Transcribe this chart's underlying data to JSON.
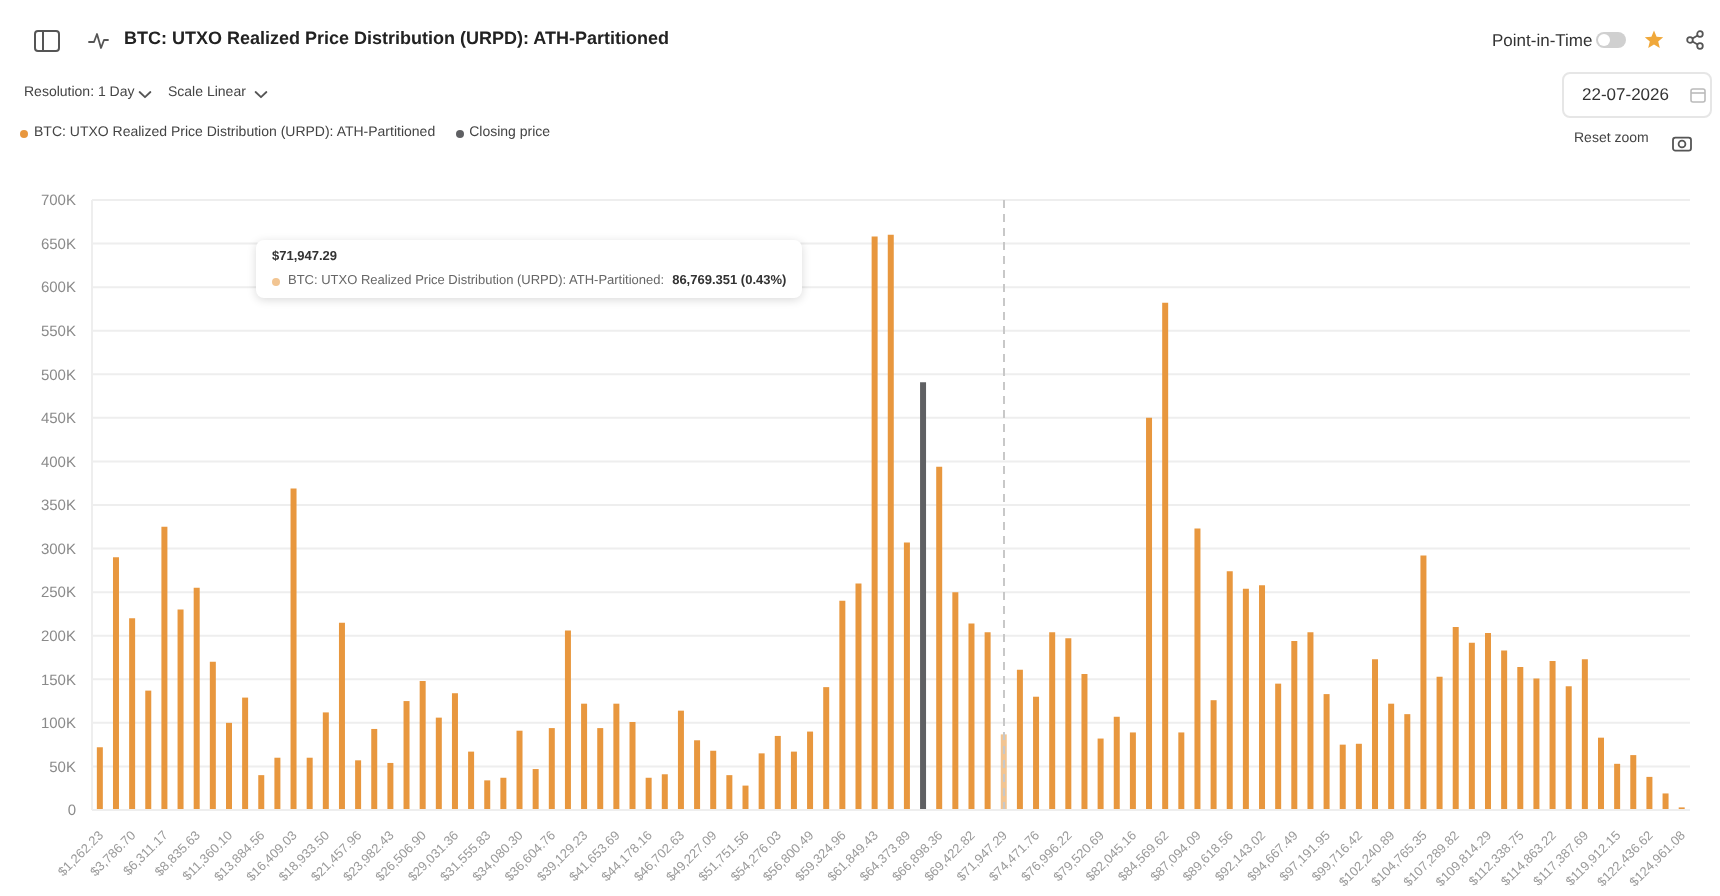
{
  "chart_data": {
    "type": "bar",
    "title": "BTC: UTXO Realized Price Distribution (URPD): ATH-Partitioned",
    "categories": [
      "$1,262.23",
      null,
      "$3,786.70",
      null,
      "$6,311.17",
      null,
      "$8,835.63",
      null,
      "$11,360.10",
      null,
      "$13,884.56",
      null,
      "$16,409.03",
      null,
      "$18,933.50",
      null,
      "$21,457.96",
      null,
      "$23,982.43",
      null,
      "$26,506.90",
      null,
      "$29,031.36",
      null,
      "$31,555.83",
      null,
      "$34,080.30",
      null,
      "$36,604.76",
      null,
      "$39,129.23",
      null,
      "$41,653.69",
      null,
      "$44,178.16",
      null,
      "$46,702.63",
      null,
      "$49,227.09",
      null,
      "$51,751.56",
      null,
      "$54,276.03",
      null,
      "$56,800.49",
      null,
      "$59,324.96",
      null,
      "$61,849.43",
      null,
      "$64,373.89",
      null,
      "$66,898.36",
      null,
      "$69,422.82",
      null,
      "$71,947.29",
      null,
      "$74,471.76",
      null,
      "$76,996.22",
      null,
      "$79,520.69",
      null,
      "$82,045.16",
      null,
      "$84,569.62",
      null,
      "$87,094.09",
      null,
      "$89,618.56",
      null,
      "$92,143.02",
      null,
      "$94,667.49",
      null,
      "$97,191.95",
      null,
      "$99,716.42",
      null,
      "$102,240.89",
      null,
      "$104,765.35",
      null,
      "$107,289.82",
      null,
      "$109,814.29",
      null,
      "$112,338.75",
      null,
      "$114,863.22",
      null,
      "$117,387.69",
      null,
      "$119,912.15",
      null,
      "$122,436.62",
      null,
      "$124,961.08"
    ],
    "series": [
      {
        "name": "BTC: UTXO Realized Price Distribution (URPD): ATH-Partitioned",
        "color": "#e8973e",
        "colors": [
          "#e8973e",
          "#e8973e",
          "#e8973e",
          "#e8973e",
          "#e8973e",
          "#e8973e",
          "#e8973e",
          "#e8973e",
          "#e8973e",
          "#e8973e",
          "#e8973e",
          "#e8973e",
          "#e8973e",
          "#e8973e",
          "#e8973e",
          "#e8973e",
          "#e8973e",
          "#e8973e",
          "#e8973e",
          "#e8973e",
          "#e8973e",
          "#e8973e",
          "#e8973e",
          "#e8973e",
          "#e8973e",
          "#e8973e",
          "#e8973e",
          "#e8973e",
          "#e8973e",
          "#e8973e",
          "#e8973e",
          "#e8973e",
          "#e8973e",
          "#e8973e",
          "#e8973e",
          "#e8973e",
          "#e8973e",
          "#e8973e",
          "#e8973e",
          "#e8973e",
          "#e8973e",
          "#e8973e",
          "#e8973e",
          "#e8973e",
          "#e8973e",
          "#e8973e",
          "#e8973e",
          "#e8973e",
          "#e8973e",
          "#e8973e",
          "#e8973e",
          "#e8973e",
          "#e8973e",
          "#e8973e",
          "#e8973e",
          "#e8973e",
          "#f2c592",
          "#e8973e",
          "#e8973e",
          "#e8973e",
          "#e8973e",
          "#e8973e",
          "#e8973e",
          "#e8973e",
          "#e8973e",
          "#e8973e",
          "#e8973e",
          "#e8973e",
          "#e8973e",
          "#e8973e",
          "#e8973e",
          "#e8973e",
          "#e8973e",
          "#e8973e",
          "#e8973e",
          "#e8973e",
          "#e8973e",
          "#e8973e",
          "#e8973e",
          "#e8973e",
          "#e8973e",
          "#e8973e",
          "#e8973e",
          "#e8973e",
          "#e8973e",
          "#e8973e",
          "#e8973e",
          "#e8973e",
          "#e8973e",
          "#e8973e",
          "#e8973e",
          "#e8973e",
          "#e8973e",
          "#e8973e",
          "#e8973e",
          "#e8973e",
          "#e8973e",
          "#e8973e",
          "#e8973e"
        ],
        "values": [
          72000,
          290000,
          220000,
          137000,
          325000,
          230000,
          255000,
          170000,
          100000,
          129000,
          40000,
          60000,
          369000,
          60000,
          112000,
          215000,
          57000,
          93000,
          54000,
          125000,
          148000,
          106000,
          134000,
          67000,
          34000,
          37000,
          91000,
          47000,
          94000,
          206000,
          122000,
          94000,
          122000,
          101000,
          37000,
          41000,
          114000,
          80000,
          68000,
          40000,
          28000,
          65000,
          85000,
          67000,
          90000,
          141000,
          240000,
          260000,
          658000,
          660000,
          307000,
          null,
          394000,
          250000,
          214000,
          204000,
          86769.351,
          161000,
          130000,
          204000,
          197000,
          156000,
          82000,
          107000,
          89000,
          450000,
          582000,
          89000,
          323000,
          126000,
          274000,
          254000,
          258000,
          145000,
          194000,
          204000,
          133000,
          75000,
          76000,
          173000,
          122000,
          110000,
          292000,
          153000,
          210000,
          192000,
          203000,
          183000,
          164000,
          151000,
          171000,
          142000,
          173000,
          83000,
          53000,
          63000,
          38000,
          19000,
          3000
        ]
      },
      {
        "name": "Closing price",
        "color": "#5f6063",
        "values": [
          null,
          null,
          null,
          null,
          null,
          null,
          null,
          null,
          null,
          null,
          null,
          null,
          null,
          null,
          null,
          null,
          null,
          null,
          null,
          null,
          null,
          null,
          null,
          null,
          null,
          null,
          null,
          null,
          null,
          null,
          null,
          null,
          null,
          null,
          null,
          null,
          null,
          null,
          null,
          null,
          null,
          null,
          null,
          null,
          null,
          null,
          null,
          null,
          null,
          null,
          null,
          491000,
          null,
          null,
          null,
          null,
          null,
          null,
          null,
          null,
          null,
          null,
          null,
          null,
          null,
          null,
          null,
          null,
          null,
          null,
          null,
          null,
          null,
          null,
          null,
          null,
          null,
          null,
          null,
          null,
          null,
          null,
          null,
          null,
          null,
          null,
          null,
          null,
          null,
          null,
          null,
          null,
          null,
          null,
          null,
          null,
          null,
          null,
          null
        ]
      }
    ],
    "stacked": true,
    "ylim": [
      0,
      700000
    ],
    "yticks": [
      0,
      {
        "value": 50000,
        "label": "50K"
      },
      {
        "value": 100000,
        "label": "100K"
      },
      {
        "value": 150000,
        "label": "150K"
      },
      {
        "value": 200000,
        "label": "200K"
      },
      {
        "value": 250000,
        "label": "250K"
      },
      {
        "value": 300000,
        "label": "300K"
      },
      {
        "value": 350000,
        "label": "350K"
      },
      {
        "value": 400000,
        "label": "400K"
      },
      {
        "value": 450000,
        "label": "450K"
      },
      {
        "value": 500000,
        "label": "500K"
      },
      {
        "value": 550000,
        "label": "550K"
      },
      {
        "value": 600000,
        "label": "600K"
      },
      {
        "value": 650000,
        "label": "650K"
      },
      {
        "value": 700000,
        "label": "700K"
      }
    ],
    "grid": "y",
    "legend": "top left",
    "ref_lines": [
      {
        "axis": "x",
        "value": "$71,947.29",
        "color": "#c8c8c8",
        "line_style": "dashed"
      }
    ],
    "annotations": [
      "Resolution: 1 Day",
      "Scale Linear",
      "Point-in-Time",
      "22-07-2026",
      "Reset zoom",
      "$71,947.29",
      "BTC: UTXO Realized Price Distribution (URPD): ATH-Partitioned: 86,769.351 (0.43%)"
    ]
  }
}
